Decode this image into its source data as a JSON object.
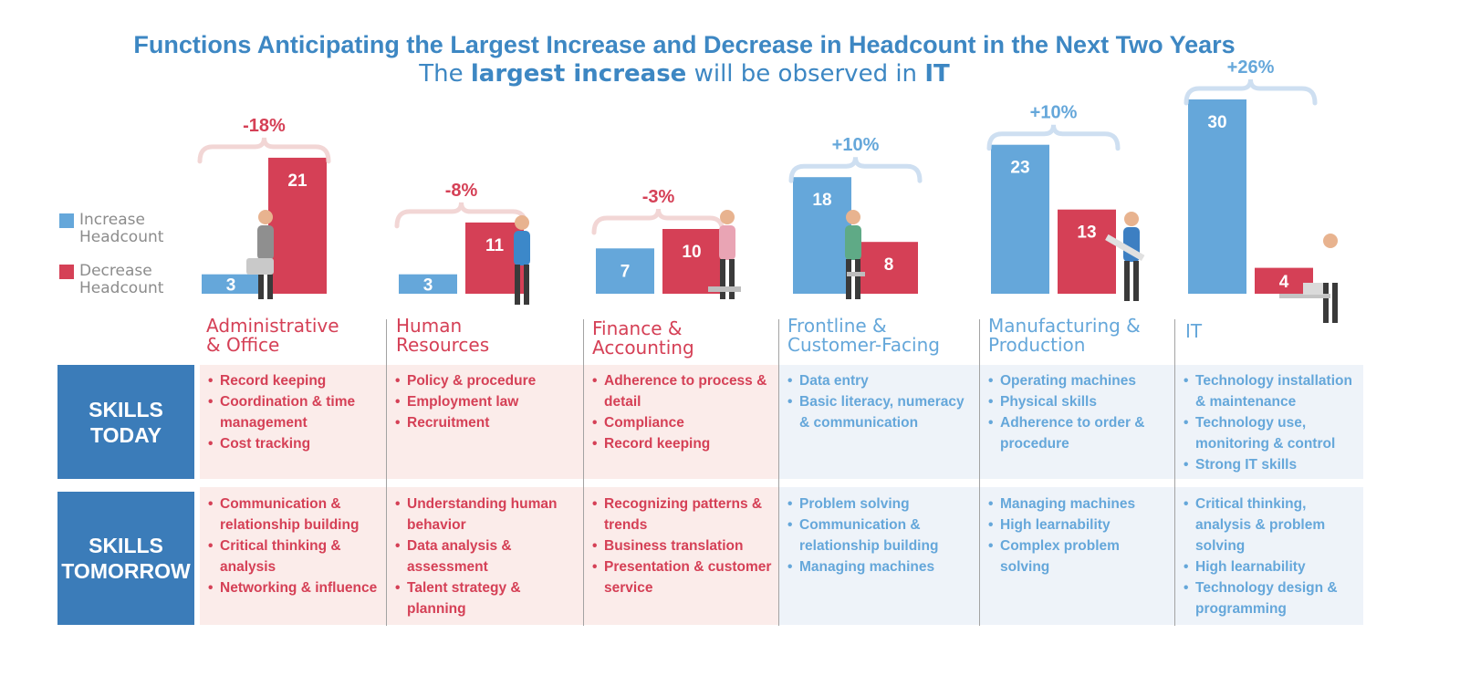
{
  "title": "Functions Anticipating the Largest Increase and Decrease in Headcount in the Next Two Years",
  "subtitle": {
    "part1": "The ",
    "bold1": "largest increase",
    "part2": " will be observed in ",
    "bold2": "IT"
  },
  "legend": {
    "increase": "Increase Headcount",
    "decrease": "Decrease Headcount"
  },
  "colors": {
    "increase": "#65a7da",
    "decrease": "#d54056",
    "title": "#3d87c3",
    "skills_box": "#3b7cb9",
    "red_panel": "#fbecea",
    "blue_panel": "#eef3f9",
    "red_brace": "#f2d6d5",
    "blue_brace": "#cedff1"
  },
  "chart_data": {
    "type": "bar",
    "title": "Functions Anticipating the Largest Increase and Decrease in Headcount in the Next Two Years",
    "categories": [
      "Administrative & Office",
      "Human Resources",
      "Finance & Accounting",
      "Frontline & Customer-Facing",
      "Manufacturing & Production",
      "IT"
    ],
    "series": [
      {
        "name": "Increase Headcount",
        "values": [
          3,
          3,
          7,
          18,
          23,
          30
        ]
      },
      {
        "name": "Decrease Headcount",
        "values": [
          21,
          11,
          10,
          8,
          13,
          4
        ]
      }
    ],
    "net_change": [
      "-18%",
      "-8%",
      "-3%",
      "+10%",
      "+10%",
      "+26%"
    ],
    "legend_position": "left",
    "grid": false
  },
  "categories": [
    {
      "label_line1": "Administrative",
      "label_line2": "& Office",
      "theme": "red",
      "skills_today": [
        "Record keeping",
        "Coordination & time management",
        "Cost tracking"
      ],
      "skills_tomorrow": [
        "Communication & relationship building",
        "Critical thinking & analysis",
        "Networking & influence"
      ]
    },
    {
      "label_line1": "Human",
      "label_line2": "Resources",
      "theme": "red",
      "skills_today": [
        "Policy & procedure",
        "Employment law",
        "Recruitment"
      ],
      "skills_tomorrow": [
        "Understanding human behavior",
        "Data analysis & assessment",
        "Talent strategy & planning"
      ]
    },
    {
      "label_line1": "Finance &",
      "label_line2": "Accounting",
      "theme": "red",
      "skills_today": [
        "Adherence to process & detail",
        "Compliance",
        "Record keeping"
      ],
      "skills_tomorrow": [
        "Recognizing patterns & trends",
        "Business translation",
        "Presentation & customer service"
      ]
    },
    {
      "label_line1": "Frontline &",
      "label_line2": "Customer-Facing",
      "theme": "blue",
      "skills_today": [
        "Data entry",
        "Basic literacy, numeracy & communication"
      ],
      "skills_tomorrow": [
        "Problem solving",
        "Communication & relationship building",
        "Managing machines"
      ]
    },
    {
      "label_line1": "Manufacturing &",
      "label_line2": "Production",
      "theme": "blue",
      "skills_today": [
        "Operating machines",
        "Physical skills",
        "Adherence to order & procedure"
      ],
      "skills_tomorrow": [
        "Managing machines",
        "High learnability",
        "Complex problem solving"
      ]
    },
    {
      "label_line1": "IT",
      "label_line2": "",
      "theme": "blue",
      "skills_today": [
        "Technology installation & maintenance",
        "Technology use, monitoring & control",
        "Strong IT skills"
      ],
      "skills_tomorrow": [
        "Critical thinking, analysis & problem solving",
        "High learnability",
        "Technology design & programming"
      ]
    }
  ],
  "skills_today_label": {
    "line1": "SKILLS",
    "line2": "TODAY"
  },
  "skills_tomorrow_label": {
    "line1": "SKILLS",
    "line2": "TOMORROW"
  },
  "figures": [
    "businessman-with-briefcase",
    "woman-pointing",
    "woman-seated-on-chair",
    "woman-on-phone-seated",
    "worker-carrying-pipe",
    "man-at-laptop-desk"
  ]
}
